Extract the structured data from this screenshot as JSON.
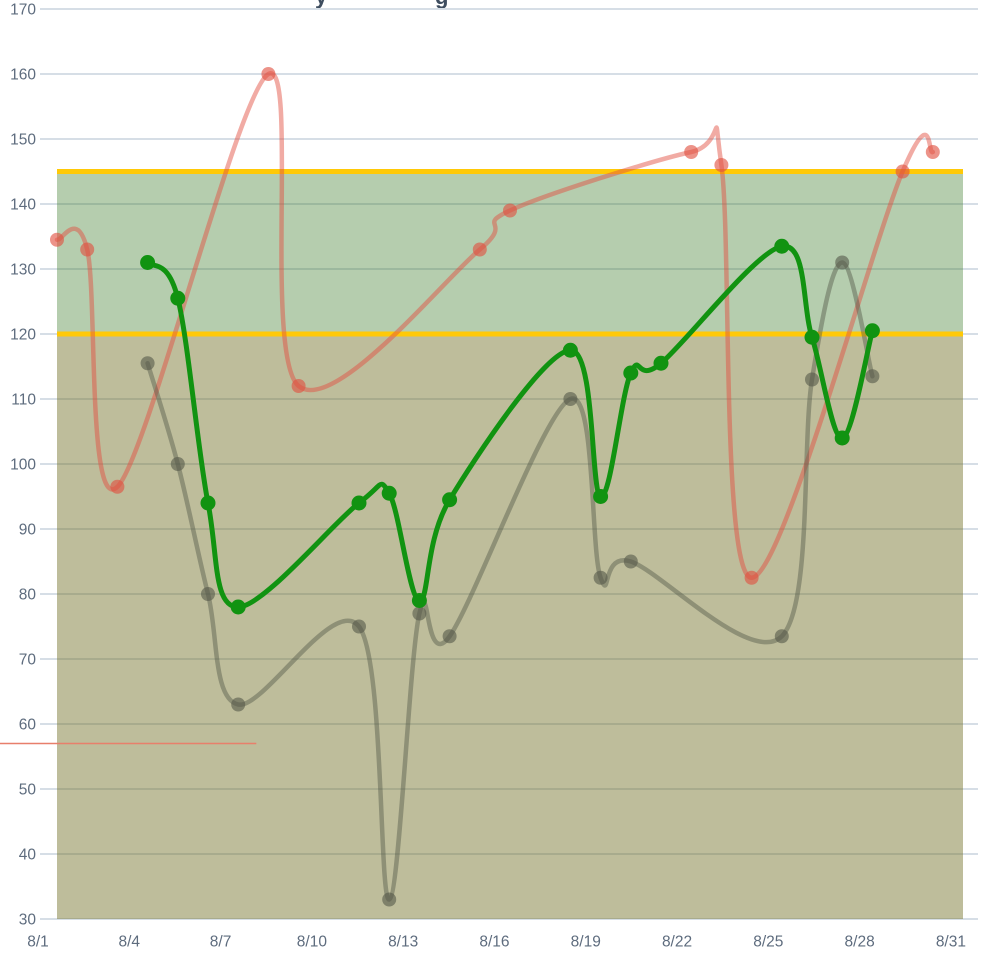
{
  "title_fragments": [
    {
      "glyph": "y",
      "x": 315
    },
    {
      "glyph": "g",
      "x": 435
    }
  ],
  "colors": {
    "grid_line": "#C9D3DD",
    "axis_text": "#5E6C7E",
    "threshold_yellow": "#FFC907",
    "band_upper_fill": "rgba(55,120,35,0.37)",
    "band_lower_fill": "rgba(110,108,34,0.45)",
    "annotation_red": "#E87F6B"
  },
  "chart_data": {
    "type": "line",
    "title": "",
    "xlabel": "",
    "ylabel": "",
    "x_axis": {
      "tick_labels": [
        "8/1",
        "8/4",
        "8/7",
        "8/10",
        "8/13",
        "8/16",
        "8/19",
        "8/22",
        "8/25",
        "8/28",
        "8/31"
      ]
    },
    "y_axis": {
      "min": 30,
      "max": 170,
      "step": 10,
      "tick_labels": [
        "30",
        "40",
        "50",
        "60",
        "70",
        "80",
        "90",
        "100",
        "110",
        "120",
        "130",
        "140",
        "150",
        "160",
        "170"
      ]
    },
    "grid": true,
    "legend": "none",
    "bands": [
      {
        "name": "upper-target-band",
        "from": 120,
        "to": 145
      },
      {
        "name": "lower-band",
        "from": 30,
        "to": 120
      }
    ],
    "threshold_lines": [
      {
        "value": 145
      },
      {
        "value": 120
      }
    ],
    "annotation_line": {
      "value": 57,
      "from_day": -0.9,
      "to_day": 7.6
    },
    "series": [
      {
        "id": "red",
        "color": "#E15041",
        "line_opacity": 0.48,
        "dot_opacity": 0.62,
        "line_width": 4.5,
        "dot_radius": 7,
        "points": [
          {
            "date": "8/1",
            "value": 134.5
          },
          {
            "date": "8/2",
            "value": 133
          },
          {
            "date": "8/3",
            "value": 96.5
          },
          {
            "date": "8/8",
            "value": 160
          },
          {
            "date": "8/9",
            "value": 112
          },
          {
            "date": "8/15",
            "value": 133
          },
          {
            "date": "8/16",
            "value": 139
          },
          {
            "date": "8/22",
            "value": 148
          },
          {
            "date": "8/23",
            "value": 146
          },
          {
            "date": "8/24",
            "value": 82.5
          },
          {
            "date": "8/29",
            "value": 145
          },
          {
            "date": "8/30",
            "value": 148
          }
        ]
      },
      {
        "id": "gray",
        "color": "#55584A",
        "line_opacity": 0.45,
        "dot_opacity": 0.6,
        "line_width": 4.5,
        "dot_radius": 7,
        "points": [
          {
            "date": "8/4",
            "value": 115.5
          },
          {
            "date": "8/5",
            "value": 100
          },
          {
            "date": "8/6",
            "value": 80
          },
          {
            "date": "8/7",
            "value": 63
          },
          {
            "date": "8/11",
            "value": 75
          },
          {
            "date": "8/12",
            "value": 33
          },
          {
            "date": "8/13",
            "value": 77
          },
          {
            "date": "8/14",
            "value": 73.5
          },
          {
            "date": "8/18",
            "value": 110
          },
          {
            "date": "8/19",
            "value": 82.5
          },
          {
            "date": "8/20",
            "value": 85
          },
          {
            "date": "8/25",
            "value": 73.5
          },
          {
            "date": "8/26",
            "value": 113
          },
          {
            "date": "8/27",
            "value": 131
          },
          {
            "date": "8/28",
            "value": 113.5
          }
        ]
      },
      {
        "id": "green",
        "color": "#119311",
        "line_opacity": 1,
        "dot_opacity": 1,
        "line_width": 5,
        "dot_radius": 7.5,
        "points": [
          {
            "date": "8/4",
            "value": 131
          },
          {
            "date": "8/5",
            "value": 125.5
          },
          {
            "date": "8/6",
            "value": 94
          },
          {
            "date": "8/7",
            "value": 78
          },
          {
            "date": "8/11",
            "value": 94
          },
          {
            "date": "8/12",
            "value": 95.5
          },
          {
            "date": "8/13",
            "value": 79
          },
          {
            "date": "8/14",
            "value": 94.5
          },
          {
            "date": "8/18",
            "value": 117.5
          },
          {
            "date": "8/19",
            "value": 95
          },
          {
            "date": "8/20",
            "value": 114
          },
          {
            "date": "8/21",
            "value": 115.5
          },
          {
            "date": "8/25",
            "value": 133.5
          },
          {
            "date": "8/26",
            "value": 119.5
          },
          {
            "date": "8/27",
            "value": 104
          },
          {
            "date": "8/28",
            "value": 120.5
          }
        ]
      }
    ]
  }
}
